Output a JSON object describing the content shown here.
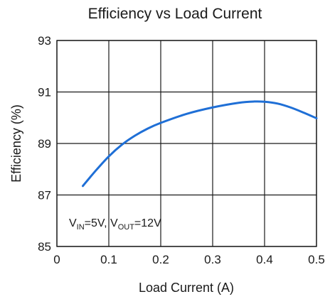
{
  "chart_data": {
    "type": "line",
    "title": "Efficiency vs Load Current",
    "xlabel": "Load Current (A)",
    "ylabel": "Efficiency (%)",
    "xlim": [
      0,
      0.5
    ],
    "ylim": [
      85,
      93
    ],
    "xticks": [
      "0",
      "0.1",
      "0.2",
      "0.3",
      "0.4",
      "0.5"
    ],
    "yticks": [
      "85",
      "87",
      "89",
      "91",
      "93"
    ],
    "grid": true,
    "annotation": {
      "v_in_main": "V",
      "v_in_sub": "IN",
      "v_in_value": "=5V, ",
      "v_out_main": "V",
      "v_out_sub": "OUT",
      "v_out_value": "=12V"
    },
    "series": [
      {
        "color": "#1f6fd6",
        "x": [
          0.05,
          0.075,
          0.1,
          0.125,
          0.15,
          0.175,
          0.2,
          0.25,
          0.3,
          0.35,
          0.38,
          0.4,
          0.425,
          0.45,
          0.475,
          0.5
        ],
        "y": [
          87.35,
          87.95,
          88.5,
          88.95,
          89.3,
          89.58,
          89.8,
          90.15,
          90.4,
          90.58,
          90.63,
          90.62,
          90.55,
          90.4,
          90.2,
          89.98
        ]
      }
    ]
  }
}
